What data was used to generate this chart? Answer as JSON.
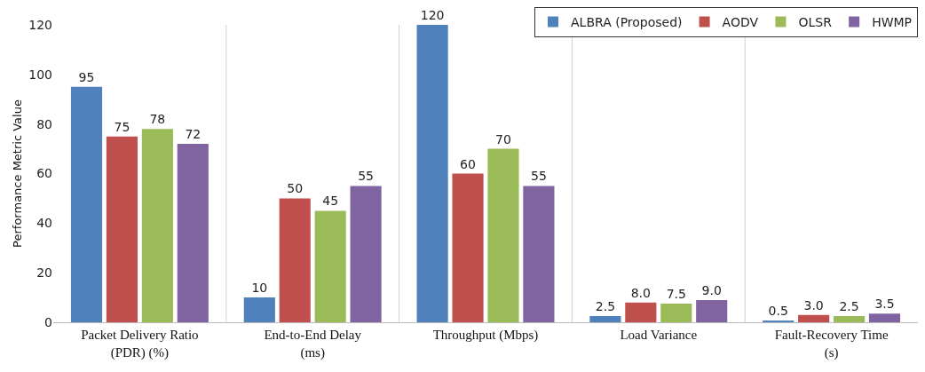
{
  "chart_data": {
    "type": "bar",
    "ylabel": "Performance Metric Value",
    "categories": [
      "Packet Delivery Ratio\n(PDR) (%)",
      "End-to-End Delay\n(ms)",
      "Throughput (Mbps)",
      "Load Variance",
      "Fault-Recovery Time\n(s)"
    ],
    "series": [
      {
        "name": "ALBRA (Proposed)",
        "color": "#4f81bd",
        "values": [
          95,
          10,
          120,
          2.5,
          0.5
        ],
        "value_labels": [
          "95",
          "10",
          "120",
          "2.5",
          "0.5"
        ]
      },
      {
        "name": "AODV",
        "color": "#c0504d",
        "values": [
          75,
          50,
          60,
          8,
          3
        ],
        "value_labels": [
          "75",
          "50",
          "60",
          "8.0",
          "3.0"
        ]
      },
      {
        "name": "OLSR",
        "color": "#9bbb59",
        "values": [
          78,
          45,
          70,
          7.5,
          2.5
        ],
        "value_labels": [
          "78",
          "45",
          "70",
          "7.5",
          "2.5"
        ]
      },
      {
        "name": "HWMP",
        "color": "#8064a2",
        "values": [
          72,
          55,
          55,
          9,
          3.5
        ],
        "value_labels": [
          "72",
          "55",
          "55",
          "9.0",
          "3.5"
        ]
      }
    ],
    "ylim": [
      0,
      120
    ],
    "yticks": [
      0,
      20,
      40,
      60,
      80,
      100,
      120
    ],
    "grid": "x",
    "legend": "top right"
  }
}
